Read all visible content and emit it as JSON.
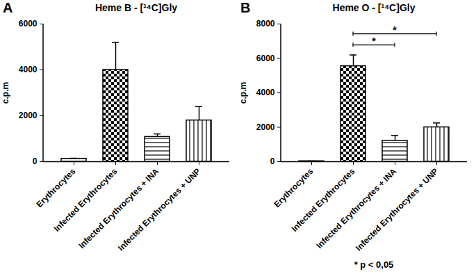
{
  "chart_data": [
    {
      "type": "bar",
      "panel": "A",
      "title": "Heme B - [¹⁴C]Gly",
      "y_label": "c.p.m",
      "categories": [
        "Erythrocytes",
        "Infected Erythrocytes",
        "Infected Erythrocytes + INA",
        "Infected Erythrocytes + UNP"
      ],
      "values": [
        130,
        4000,
        1080,
        1800
      ],
      "errors": [
        20,
        1200,
        130,
        600
      ],
      "color": "#000000",
      "ylim": [
        0,
        6000
      ],
      "yticks": [
        0,
        2000,
        4000,
        6000
      ]
    },
    {
      "type": "bar",
      "panel": "B",
      "title": "Heme O - [¹⁴C]Gly",
      "y_label": "c.p.m",
      "categories": [
        "Erythrocytes",
        "Infected Erythrocytes",
        "Infected Erythrocytes + INA",
        "Infected Erythrocytes + UNP"
      ],
      "values": [
        30,
        5550,
        1220,
        2000
      ],
      "errors": [
        10,
        650,
        300,
        250
      ],
      "color": "#000000",
      "ylim": [
        0,
        8000
      ],
      "yticks": [
        0,
        2000,
        4000,
        6000,
        8000
      ],
      "significance": [
        {
          "from": "Infected Erythrocytes",
          "to": "Infected Erythrocytes + INA",
          "text": "*"
        },
        {
          "from": "Infected Erythrocytes",
          "to": "Infected Erythrocytes + UNP",
          "text": "*"
        }
      ],
      "caption": "* p < 0,05"
    }
  ]
}
